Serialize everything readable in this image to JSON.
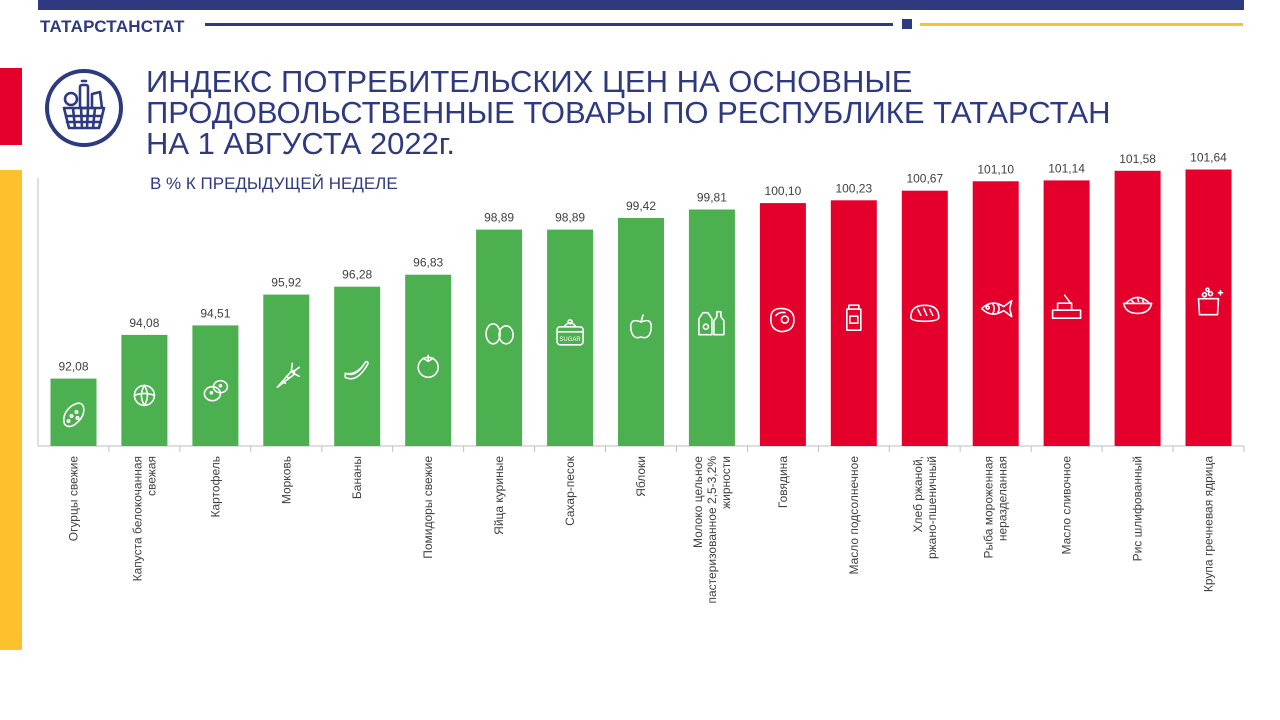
{
  "header": {
    "org": "ТАТАРСТАНСТАТ",
    "title": "ИНДЕКС ПОТРЕБИТЕЛЬСКИХ ЦЕН НА ОСНОВНЫЕ ПРОДОВОЛЬСТВЕННЫЕ ТОВАРЫ ПО РЕСПУБЛИКЕ ТАТАРСТАН НА 1 АВГУСТА 2022г.",
    "subtitle": "В % К ПРЕДЫДУЩЕЙ НЕДЕЛЕ"
  },
  "colors": {
    "navy": "#2e3a80",
    "green": "#4caf50",
    "red": "#e4002b",
    "yellow": "#fdc12d"
  },
  "chart_data": {
    "type": "bar",
    "title": "",
    "xlabel": "",
    "ylabel": "",
    "ylim": [
      89,
      103
    ],
    "grid": false,
    "legend": "none",
    "categories": [
      "Огурцы свежие",
      "Капуста белокочанная свежая",
      "Картофель",
      "Морковь",
      "Бананы",
      "Помидоры свежие",
      "Яйца куриные",
      "Сахар-песок",
      "Яблоки",
      "Молоко цельное пастеризованное 2,5-3,2% жирности",
      "Говядина",
      "Масло подсолнечное",
      "Хлеб ржаной, ржано-пшеничный",
      "Рыба мороженная неразделанная",
      "Масло сливочное",
      "Рис шлифованный",
      "Крупа гречневая ядрица"
    ],
    "values": [
      92.08,
      94.08,
      94.51,
      95.92,
      96.28,
      96.83,
      98.89,
      98.89,
      99.42,
      99.81,
      100.1,
      100.23,
      100.67,
      101.1,
      101.14,
      101.58,
      101.64
    ],
    "value_labels": [
      "92,08",
      "94,08",
      "94,51",
      "95,92",
      "96,28",
      "96,83",
      "98,89",
      "98,89",
      "99,42",
      "99,81",
      "100,10",
      "100,23",
      "100,67",
      "101,10",
      "101,14",
      "101,58",
      "101,64"
    ],
    "icons": [
      "cucumber-icon",
      "cabbage-icon",
      "potato-icon",
      "carrot-icon",
      "banana-icon",
      "tomato-icon",
      "eggs-icon",
      "sugar-icon",
      "apple-icon",
      "milk-icon",
      "meat-icon",
      "oil-bottle-icon",
      "bread-icon",
      "fish-icon",
      "butter-icon",
      "rice-icon",
      "buckwheat-icon"
    ]
  }
}
